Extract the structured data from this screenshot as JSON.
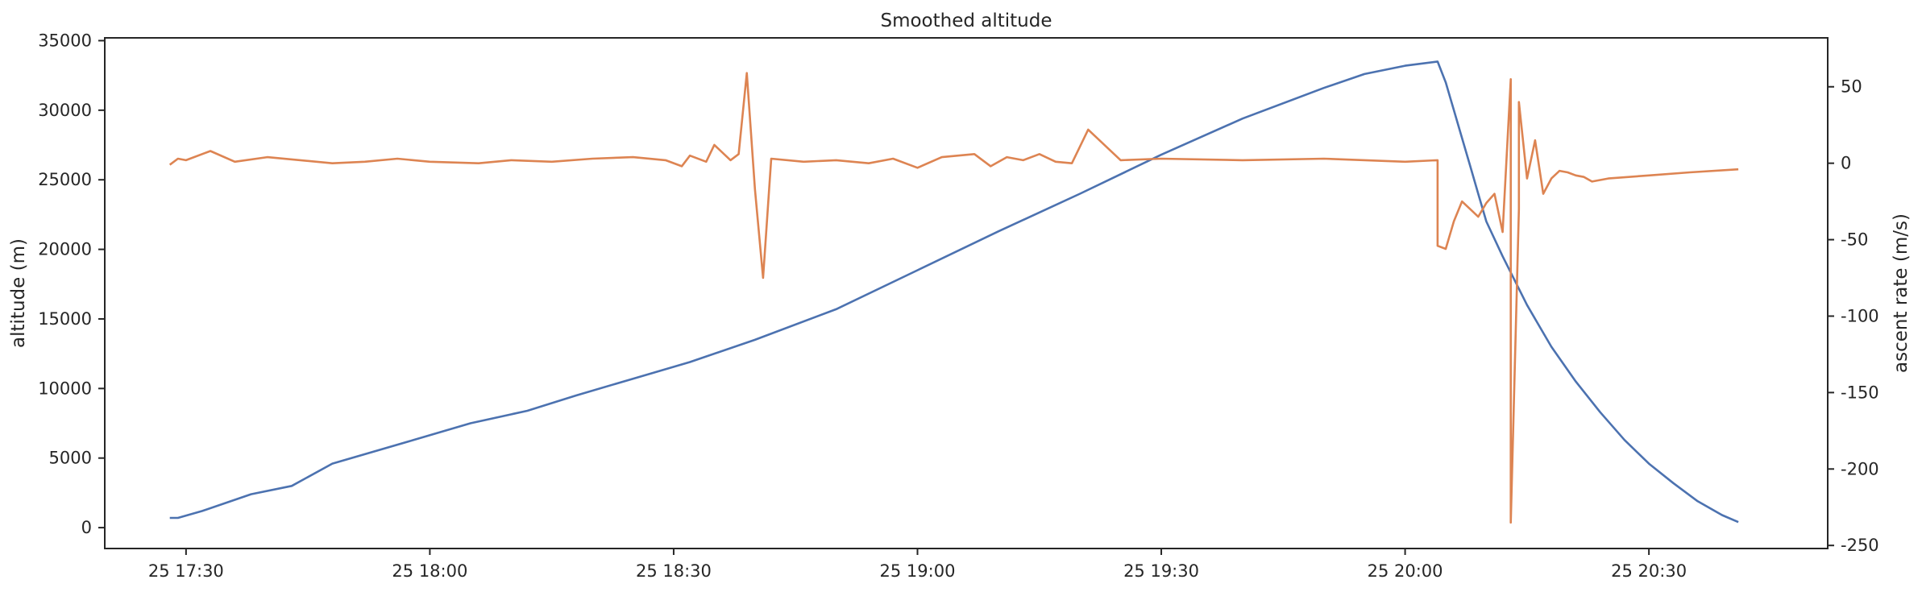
{
  "chart_data": {
    "type": "line",
    "title": "Smoothed altitude",
    "xlabel": "",
    "ylabel": "altitude (m)",
    "y2label": "ascent rate (m/s)",
    "xlim": [
      "25 17:20",
      "25 20:52"
    ],
    "ylim": [
      -1500,
      35200
    ],
    "y2lim": [
      -252,
      82
    ],
    "x_ticks": [
      "25 17:30",
      "25 18:00",
      "25 18:30",
      "25 19:00",
      "25 19:30",
      "25 20:00",
      "25 20:30"
    ],
    "y_ticks": [
      0,
      5000,
      10000,
      15000,
      20000,
      25000,
      30000,
      35000
    ],
    "y2_ticks": [
      -250,
      -200,
      -150,
      -100,
      -50,
      0,
      50
    ],
    "grid": false,
    "series": [
      {
        "color": "#4c72b0",
        "axis": "left",
        "x": [
          "17:28",
          "17:29",
          "17:32",
          "17:35",
          "17:38",
          "17:43",
          "17:48",
          "17:58",
          "18:05",
          "18:12",
          "18:18",
          "18:25",
          "18:32",
          "18:40",
          "18:50",
          "19:00",
          "19:10",
          "19:20",
          "19:30",
          "19:40",
          "19:50",
          "19:55",
          "20:00",
          "20:04",
          "20:05",
          "20:06",
          "20:07",
          "20:08",
          "20:09",
          "20:10",
          "20:12",
          "20:15",
          "20:18",
          "20:21",
          "20:24",
          "20:27",
          "20:30",
          "20:33",
          "20:36",
          "20:39",
          "20:41"
        ],
        "values": [
          700,
          700,
          1200,
          1800,
          2400,
          3000,
          4600,
          6300,
          7500,
          8400,
          9500,
          10700,
          11900,
          13500,
          15700,
          18500,
          21300,
          24000,
          26800,
          29400,
          31600,
          32600,
          33200,
          33500,
          32000,
          30000,
          28000,
          26000,
          24000,
          22000,
          19500,
          16000,
          13000,
          10500,
          8300,
          6300,
          4600,
          3200,
          1900,
          900,
          400
        ]
      },
      {
        "color": "#dd8452",
        "axis": "right",
        "x": [
          "17:28",
          "17:29",
          "17:30",
          "17:33",
          "17:36",
          "17:40",
          "17:48",
          "17:52",
          "17:56",
          "18:00",
          "18:06",
          "18:10",
          "18:15",
          "18:20",
          "18:25",
          "18:29",
          "18:31",
          "18:32",
          "18:34",
          "18:35",
          "18:37",
          "18:38",
          "18:39",
          "18:40",
          "18:41",
          "18:42",
          "18:46",
          "18:50",
          "18:54",
          "18:57",
          "19:00",
          "19:03",
          "19:07",
          "19:09",
          "19:11",
          "19:13",
          "19:15",
          "19:17",
          "19:19",
          "19:21",
          "19:25",
          "19:30",
          "19:40",
          "19:50",
          "20:00",
          "20:04",
          "20:04",
          "20:05",
          "20:06",
          "20:07",
          "20:08",
          "20:09",
          "20:10",
          "20:11",
          "20:12",
          "20:13",
          "20:13",
          "20:14",
          "20:14",
          "20:15",
          "20:16",
          "20:17",
          "20:18",
          "20:19",
          "20:20",
          "20:21",
          "20:22",
          "20:23",
          "20:25",
          "20:30",
          "20:35",
          "20:41"
        ],
        "values": [
          -1,
          3,
          2,
          8,
          1,
          4,
          0,
          1,
          3,
          1,
          0,
          2,
          1,
          3,
          4,
          2,
          -2,
          5,
          1,
          12,
          2,
          6,
          59,
          -17,
          -75,
          3,
          1,
          2,
          0,
          3,
          -3,
          4,
          6,
          -2,
          4,
          2,
          6,
          1,
          0,
          22,
          2,
          3,
          2,
          3,
          1,
          2,
          -54,
          -56,
          -38,
          -25,
          -30,
          -35,
          -26,
          -20,
          -45,
          55,
          -235,
          -30,
          40,
          -10,
          15,
          -20,
          -10,
          -5,
          -6,
          -8,
          -9,
          -12,
          -10,
          -8,
          -6,
          -4
        ]
      }
    ]
  }
}
